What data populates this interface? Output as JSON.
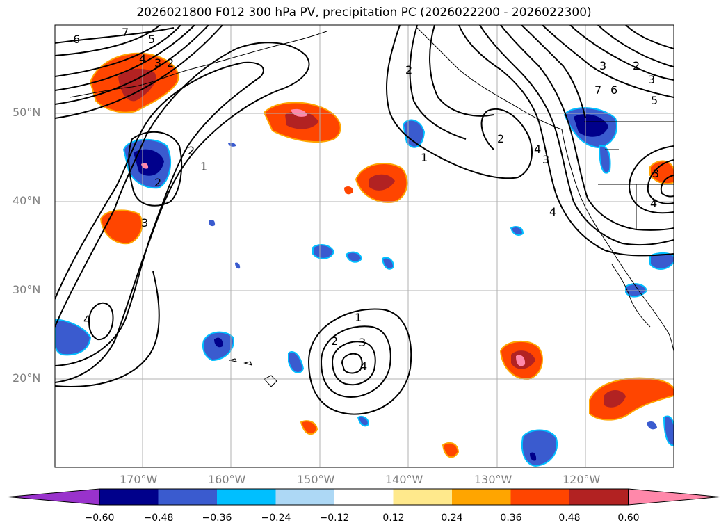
{
  "title": "2026021800 F012 300 hPa PV, precipitation PC (2026022200 - 2026022300)",
  "lat_labels": [
    "50°N",
    "40°N",
    "30°N",
    "20°N"
  ],
  "lon_labels": [
    "170°W",
    "160°W",
    "150°W",
    "140°W",
    "130°W",
    "120°W"
  ],
  "colorbar": {
    "tick_labels": [
      "−0.60",
      "−0.48",
      "−0.36",
      "−0.24",
      "−0.12",
      "0.12",
      "0.24",
      "0.36",
      "0.48",
      "0.60"
    ],
    "colors": [
      "#9932cc",
      "#00008b",
      "#3a5bcf",
      "#00bfff",
      "#add8f5",
      "#ffffff",
      "#ffe98c",
      "#ffa500",
      "#ff4500",
      "#b22222",
      "#ff88aa"
    ]
  },
  "contour_labels": [
    "6",
    "7",
    "5",
    "4",
    "3",
    "2",
    "2",
    "1",
    "2",
    "3",
    "4",
    "1",
    "2",
    "3",
    "4",
    "2",
    "1",
    "2",
    "4",
    "3",
    "4",
    "2",
    "3",
    "5",
    "6",
    "7",
    "3",
    "4",
    "3"
  ]
}
